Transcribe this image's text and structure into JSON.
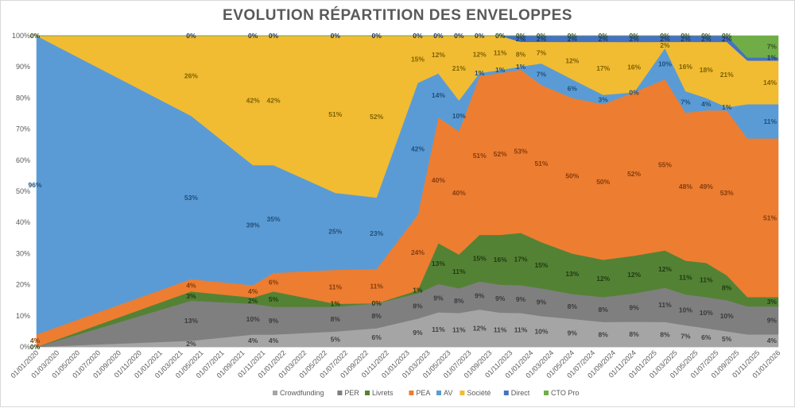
{
  "chart_data": {
    "type": "area",
    "title": "EVOLUTION RÉPARTITION DES ENVELOPPES",
    "x_labels": [
      "01/01/2020",
      "01/03/2020",
      "01/05/2020",
      "01/07/2020",
      "01/09/2020",
      "01/11/2020",
      "01/01/2021",
      "01/03/2021",
      "01/05/2021",
      "01/07/2021",
      "01/09/2021",
      "01/11/2021",
      "01/01/2022",
      "01/03/2022",
      "01/05/2022",
      "01/07/2022",
      "01/09/2022",
      "01/11/2022",
      "01/01/2023",
      "01/03/2023",
      "01/05/2023",
      "01/07/2023",
      "01/09/2023",
      "01/11/2023",
      "01/01/2024",
      "01/03/2024",
      "01/05/2024",
      "01/07/2024",
      "01/09/2024",
      "01/11/2024",
      "01/01/2025",
      "01/03/2025",
      "01/05/2025",
      "01/07/2025",
      "01/09/2025",
      "01/11/2025",
      "01/01/2026"
    ],
    "y_ticks": [
      "0%",
      "10%",
      "20%",
      "30%",
      "40%",
      "50%",
      "60%",
      "70%",
      "80%",
      "90%",
      "100%"
    ],
    "ylim": [
      0,
      100
    ],
    "points_x": [
      0,
      7.5,
      10.5,
      11.5,
      14.5,
      16.5,
      18.5,
      19.5,
      20.5,
      21.5,
      22.5,
      23.5,
      24.5,
      26,
      27.5,
      29,
      30.5,
      31.5,
      32.5,
      33.5,
      34.5,
      36
    ],
    "series": [
      {
        "name": "Crowdfunding",
        "color": "#a5a5a5",
        "values": [
          0,
          2,
          4,
          4,
          5,
          6,
          9,
          11,
          11,
          12,
          11,
          11,
          10,
          9,
          8,
          8,
          8,
          7,
          6,
          5,
          4,
          4
        ],
        "labels": [
          "",
          "2%",
          "4%",
          "4%",
          "5%",
          "6%",
          "9%",
          "11%",
          "11%",
          "12%",
          "11%",
          "11%",
          "10%",
          "9%",
          "8%",
          "8%",
          "8%",
          "7%",
          "6%",
          "5%",
          "",
          "4%"
        ]
      },
      {
        "name": "PER",
        "color": "#7f7f7f",
        "values": [
          0,
          13,
          10,
          9,
          8,
          8,
          8,
          9,
          8,
          9,
          9,
          9,
          9,
          8,
          8,
          9,
          11,
          10,
          10,
          10,
          9,
          9
        ],
        "labels": [
          "",
          "13%",
          "10%",
          "9%",
          "8%",
          "8%",
          "8%",
          "9%",
          "8%",
          "9%",
          "9%",
          "9%",
          "9%",
          "8%",
          "8%",
          "9%",
          "11%",
          "10%",
          "10%",
          "10%",
          "",
          "9%"
        ]
      },
      {
        "name": "Livrets",
        "color": "#548235",
        "values": [
          0,
          3,
          2,
          5,
          1,
          0,
          1,
          13,
          11,
          15,
          16,
          17,
          15,
          13,
          12,
          12,
          12,
          11,
          11,
          8,
          3,
          3
        ],
        "labels": [
          "0%",
          "3%",
          "2%",
          "5%",
          "1%",
          "0%",
          "1%",
          "13%",
          "11%",
          "15%",
          "16%",
          "17%",
          "15%",
          "13%",
          "12%",
          "12%",
          "12%",
          "11%",
          "11%",
          "8%",
          "",
          "3%"
        ]
      },
      {
        "name": "PEA",
        "color": "#ed7d31",
        "values": [
          4,
          4,
          4,
          6,
          11,
          11,
          24,
          40,
          40,
          51,
          52,
          53,
          51,
          50,
          50,
          52,
          55,
          48,
          49,
          53,
          51,
          51
        ],
        "labels": [
          "4%",
          "4%",
          "4%",
          "6%",
          "11%",
          "11%",
          "24%",
          "40%",
          "40%",
          "51%",
          "52%",
          "53%",
          "51%",
          "50%",
          "50%",
          "52%",
          "55%",
          "48%",
          "49%",
          "53%",
          "",
          "51%"
        ]
      },
      {
        "name": "AV",
        "color": "#5b9bd5",
        "values": [
          96,
          53,
          39,
          35,
          25,
          23,
          42,
          14,
          10,
          1,
          1,
          1,
          7,
          6,
          3,
          0,
          10,
          7,
          4,
          1,
          11,
          11
        ],
        "labels": [
          "96%",
          "53%",
          "39%",
          "35%",
          "25%",
          "23%",
          "42%",
          "14%",
          "10%",
          "1%",
          "1%",
          "1%",
          "7%",
          "6%",
          "3%",
          "0%",
          "10%",
          "7%",
          "4%",
          "1%",
          "",
          "11%"
        ]
      },
      {
        "name": "Société",
        "color": "#f1bc32",
        "values": [
          0,
          26,
          42,
          42,
          51,
          52,
          15,
          12,
          21,
          12,
          11,
          8,
          7,
          12,
          17,
          16,
          2,
          16,
          18,
          21,
          14,
          14
        ],
        "labels": [
          "0%",
          "26%",
          "42%",
          "42%",
          "51%",
          "52%",
          "15%",
          "12%",
          "21%",
          "12%",
          "11%",
          "8%",
          "7%",
          "12%",
          "17%",
          "16%",
          "2%",
          "16%",
          "18%",
          "21%",
          "",
          "14%"
        ]
      },
      {
        "name": "Direct",
        "color": "#4472c4",
        "values": [
          0,
          0,
          0,
          0,
          0,
          0,
          0,
          0,
          0,
          0,
          0,
          2,
          2,
          2,
          2,
          2,
          2,
          2,
          2,
          2,
          1,
          1
        ],
        "labels": [
          "",
          "0%",
          "0%",
          "0%",
          "0%",
          "0%",
          "0%",
          "0%",
          "0%",
          "0%",
          "0%",
          "2%",
          "2%",
          "2%",
          "2%",
          "2%",
          "2%",
          "2%",
          "2%",
          "2%",
          "",
          "1%"
        ]
      },
      {
        "name": "CTO Pro",
        "color": "#70ad47",
        "values": [
          0,
          0,
          0,
          0,
          0,
          0,
          0,
          0,
          0,
          0,
          0,
          0,
          0,
          0,
          0,
          0,
          0,
          0,
          0,
          0,
          7,
          7
        ],
        "labels": [
          "0%",
          "",
          "",
          "",
          "",
          "",
          "",
          "",
          "",
          "",
          "0%",
          "0%",
          "0%",
          "0%",
          "0%",
          "0%",
          "0%",
          "0%",
          "0%",
          "0%",
          "",
          "7%"
        ]
      }
    ]
  }
}
